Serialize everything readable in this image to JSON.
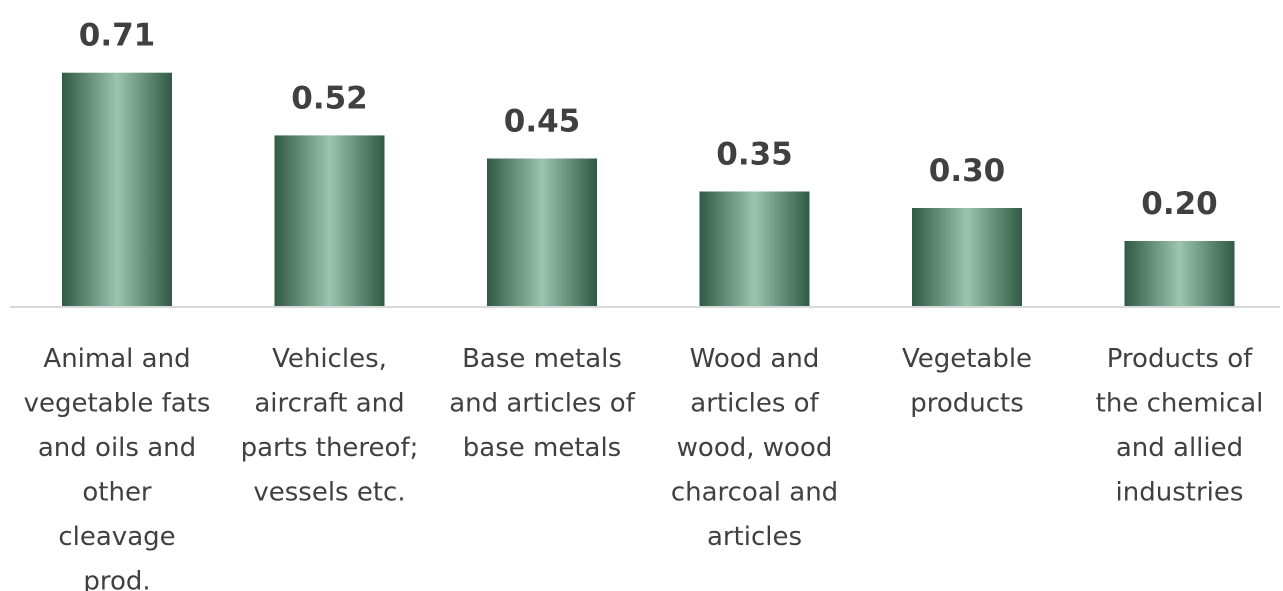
{
  "chart_data": {
    "type": "bar",
    "title": "",
    "xlabel": "",
    "ylabel": "",
    "ylim": [
      0,
      0.8
    ],
    "grid": false,
    "legend": "none",
    "categories": [
      [
        "Animal and",
        "vegetable fats",
        "and oils and",
        "other",
        "cleavage",
        "prod."
      ],
      [
        "Vehicles,",
        "aircraft and",
        "parts thereof;",
        "vessels etc."
      ],
      [
        "Base metals",
        "and articles of",
        "base metals"
      ],
      [
        "Wood and",
        "articles of",
        "wood, wood",
        "charcoal and",
        "articles"
      ],
      [
        "Vegetable",
        "products"
      ],
      [
        "Products of",
        "the chemical",
        "and allied",
        "industries"
      ]
    ],
    "values": [
      0.71,
      0.52,
      0.45,
      0.35,
      0.3,
      0.2
    ],
    "value_labels": [
      "0.71",
      "0.52",
      "0.45",
      "0.35",
      "0.30",
      "0.20"
    ],
    "colors": {
      "bar_edge": "#2f5a43",
      "bar_highlight": "#9cc4ae",
      "axis": "#d9d9d9",
      "text": "#404040"
    }
  }
}
